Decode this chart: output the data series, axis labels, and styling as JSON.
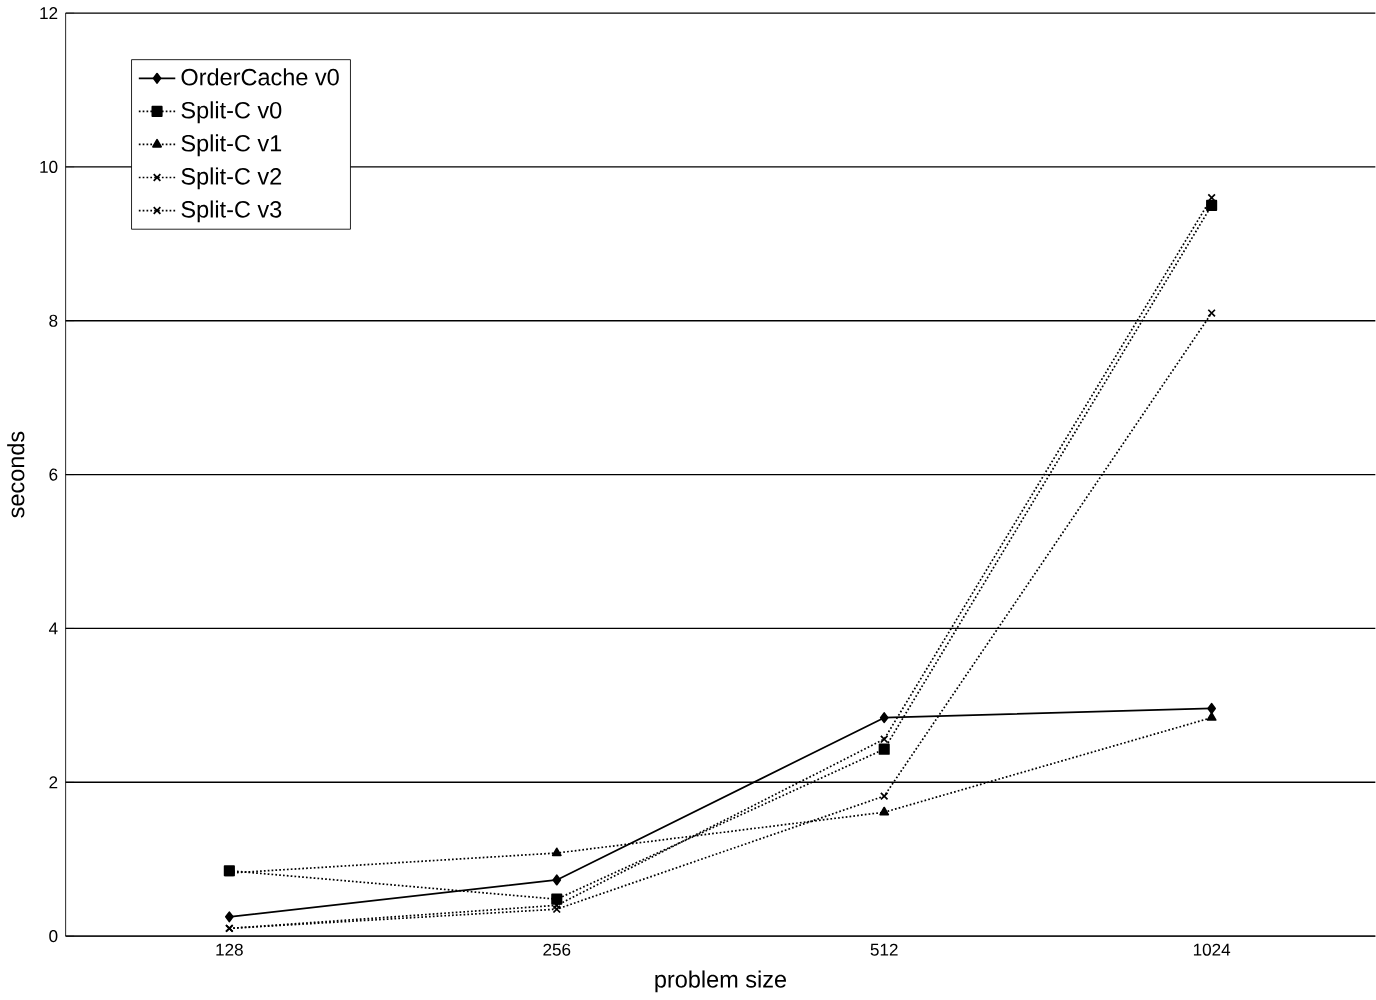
{
  "chart_data": {
    "type": "line",
    "xlabel": "problem size",
    "ylabel": "seconds",
    "categories": [
      "128",
      "256",
      "512",
      "1024"
    ],
    "ylim": [
      0,
      12
    ],
    "yticks": [
      0,
      2,
      4,
      6,
      8,
      10,
      12
    ],
    "grid": "y",
    "legend": "top left",
    "series": [
      {
        "name": "OrderCache v0",
        "color": "#000000",
        "marker": "diamond",
        "line_style": "solid",
        "values": [
          0.25,
          0.73,
          2.84,
          2.96
        ]
      },
      {
        "name": "Split-C v0",
        "color": "#000000",
        "marker": "square",
        "line_style": "dotted",
        "values": [
          0.85,
          0.48,
          2.43,
          9.5
        ]
      },
      {
        "name": "Split-C v1",
        "color": "#000000",
        "marker": "triangle",
        "line_style": "dotted",
        "values": [
          0.82,
          1.08,
          1.61,
          2.84
        ]
      },
      {
        "name": "Split-C v2",
        "color": "#000000",
        "marker": "cross",
        "line_style": "dotted",
        "values": [
          0.1,
          0.4,
          2.56,
          9.6
        ]
      },
      {
        "name": "Split-C v3",
        "color": "#000000",
        "marker": "cross",
        "line_style": "dotted",
        "values": [
          0.1,
          0.35,
          1.82,
          8.1
        ]
      }
    ]
  }
}
